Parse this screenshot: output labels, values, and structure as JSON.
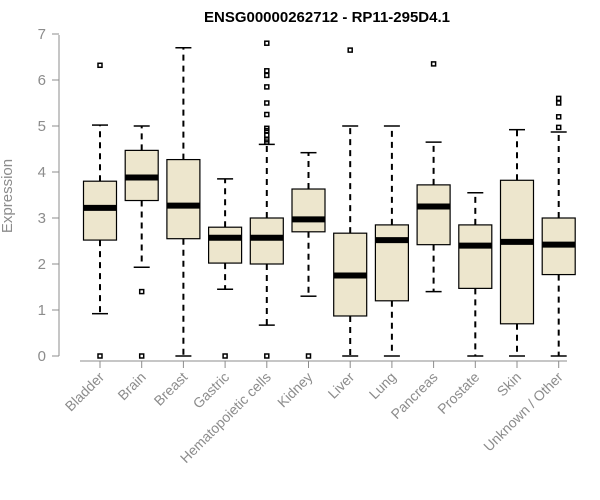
{
  "chart_data": {
    "type": "boxplot",
    "title": "ENSG00000262712 - RP11-295D4.1",
    "xlabel": "",
    "ylabel": "Expression",
    "ylim": [
      0,
      7
    ],
    "yticks": [
      0,
      1,
      2,
      3,
      4,
      5,
      6,
      7
    ],
    "grid": false,
    "colors": {
      "box_fill": "#ede6cd",
      "box_stroke": "#000000",
      "axis": "#8c8c8c",
      "title": "#000000"
    },
    "categories": [
      "Bladder",
      "Brain",
      "Breast",
      "Gastric",
      "Hematopoietic cells",
      "Kidney",
      "Liver",
      "Lung",
      "Pancreas",
      "Prostate",
      "Skin",
      "Unknown / Other"
    ],
    "boxes": [
      {
        "name": "Bladder",
        "whisker_low": 0.92,
        "q1": 2.52,
        "median": 3.22,
        "q3": 3.8,
        "whisker_high": 5.02,
        "outliers": [
          6.32,
          0.0
        ]
      },
      {
        "name": "Brain",
        "whisker_low": 1.93,
        "q1": 3.38,
        "median": 3.88,
        "q3": 4.47,
        "whisker_high": 5.0,
        "outliers": [
          1.4,
          0.0
        ]
      },
      {
        "name": "Breast",
        "whisker_low": 0.0,
        "q1": 2.55,
        "median": 3.27,
        "q3": 4.27,
        "whisker_high": 6.7,
        "outliers": []
      },
      {
        "name": "Gastric",
        "whisker_low": 1.45,
        "q1": 2.02,
        "median": 2.57,
        "q3": 2.8,
        "whisker_high": 3.85,
        "outliers": [
          0.0
        ]
      },
      {
        "name": "Hematopoietic cells",
        "whisker_low": 0.67,
        "q1": 2.0,
        "median": 2.57,
        "q3": 3.0,
        "whisker_high": 4.6,
        "outliers": [
          6.8,
          6.2,
          6.1,
          5.85,
          5.5,
          5.25,
          4.95,
          4.9,
          4.8,
          4.7,
          4.65,
          0.0
        ]
      },
      {
        "name": "Kidney",
        "whisker_low": 1.3,
        "q1": 2.7,
        "median": 2.97,
        "q3": 3.63,
        "whisker_high": 4.42,
        "outliers": [
          0.0
        ]
      },
      {
        "name": "Liver",
        "whisker_low": 0.0,
        "q1": 0.87,
        "median": 1.75,
        "q3": 2.67,
        "whisker_high": 5.0,
        "outliers": [
          6.65
        ]
      },
      {
        "name": "Lung",
        "whisker_low": 0.0,
        "q1": 1.2,
        "median": 2.52,
        "q3": 2.85,
        "whisker_high": 5.0,
        "outliers": []
      },
      {
        "name": "Pancreas",
        "whisker_low": 1.4,
        "q1": 2.42,
        "median": 3.25,
        "q3": 3.72,
        "whisker_high": 4.65,
        "outliers": [
          6.35
        ]
      },
      {
        "name": "Prostate",
        "whisker_low": 0.0,
        "q1": 1.47,
        "median": 2.4,
        "q3": 2.85,
        "whisker_high": 3.55,
        "outliers": []
      },
      {
        "name": "Skin",
        "whisker_low": 0.0,
        "q1": 0.7,
        "median": 2.48,
        "q3": 3.82,
        "whisker_high": 4.92,
        "outliers": []
      },
      {
        "name": "Unknown / Other",
        "whisker_low": 0.0,
        "q1": 1.77,
        "median": 2.42,
        "q3": 3.0,
        "whisker_high": 4.87,
        "outliers": [
          5.6,
          5.5,
          5.2,
          4.97
        ]
      }
    ]
  }
}
